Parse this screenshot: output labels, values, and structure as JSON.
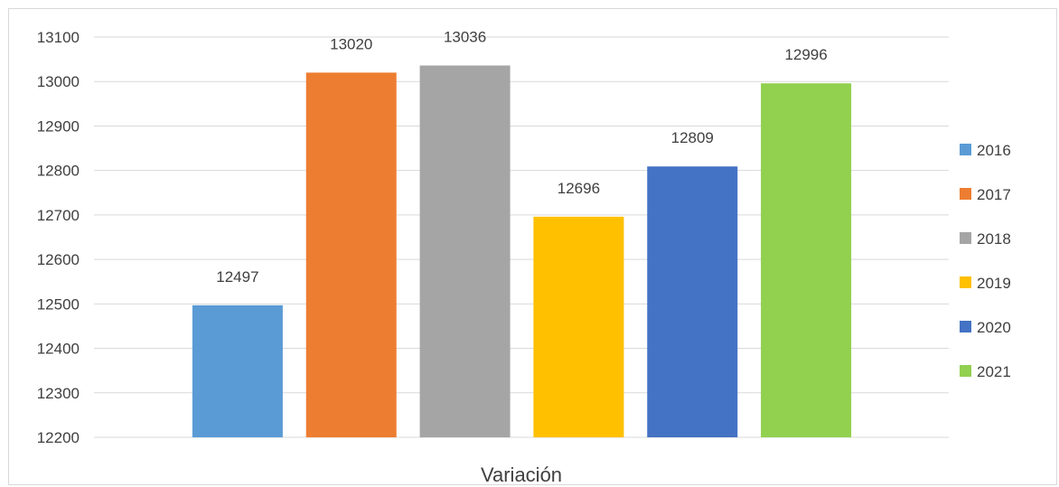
{
  "chart_data": {
    "type": "bar",
    "title": "",
    "xlabel": "",
    "ylabel": "",
    "categories": [
      "Variación"
    ],
    "series": [
      {
        "name": "2016",
        "values": [
          12497
        ],
        "color": "#5b9bd5"
      },
      {
        "name": "2017",
        "values": [
          13020
        ],
        "color": "#ed7d31"
      },
      {
        "name": "2018",
        "values": [
          13036
        ],
        "color": "#a5a5a5"
      },
      {
        "name": "2019",
        "values": [
          12696
        ],
        "color": "#ffc000"
      },
      {
        "name": "2020",
        "values": [
          12809
        ],
        "color": "#4472c4"
      },
      {
        "name": "2021",
        "values": [
          12996
        ],
        "color": "#92d050"
      }
    ],
    "ylim": [
      12200,
      13100
    ],
    "ytick_step": 100,
    "ytick_labels": [
      "12200",
      "12300",
      "12400",
      "12500",
      "12600",
      "12700",
      "12800",
      "12900",
      "13000",
      "13100"
    ],
    "data_labels": true,
    "grid": true,
    "legend": "right"
  }
}
